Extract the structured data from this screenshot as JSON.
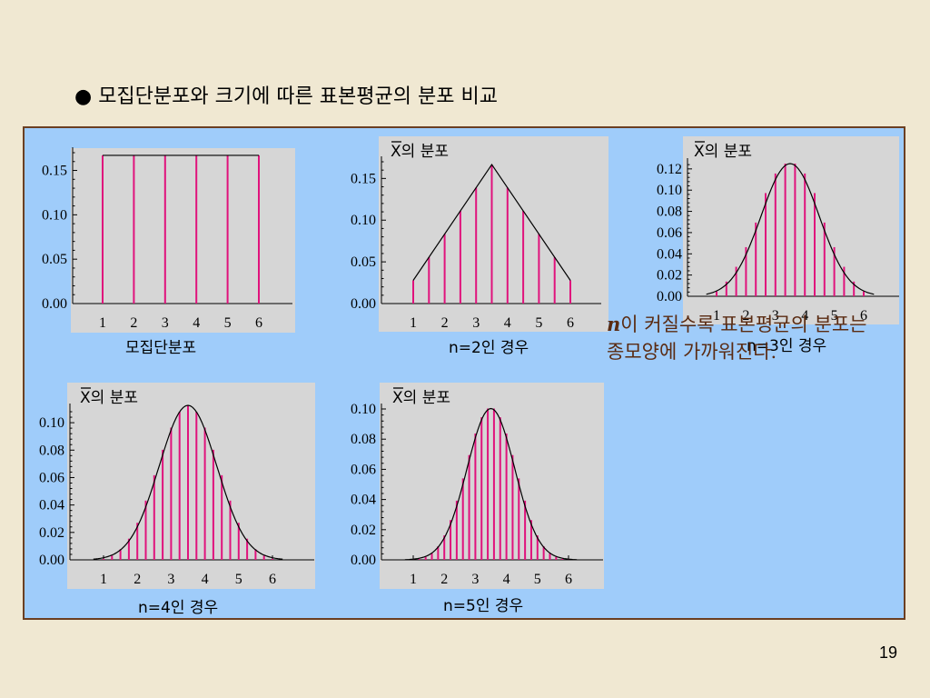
{
  "heading": "● 모집단분포와 크기에 따른 표본평균의 분포 비교",
  "note": {
    "symbol": "n",
    "text": "이 커질수록 표본평균의 분포는 종모양에 가까워진다."
  },
  "page_number": "19",
  "colors": {
    "bars": "#e0127c",
    "panel_bg": "#d6d6d6",
    "frame_bg": "#9fccfa",
    "curve": "#000000"
  },
  "chart_data": [
    {
      "type": "bar",
      "caption": "모집단분포",
      "title": "",
      "x": [
        1,
        2,
        3,
        4,
        5,
        6
      ],
      "xticks": [
        "1",
        "2",
        "3",
        "4",
        "5",
        "6"
      ],
      "yticks": [
        "0.00",
        "0.05",
        "0.10",
        "0.15"
      ],
      "ylim": [
        0,
        0.17
      ],
      "curve": "flat",
      "bars_per_unit": 1,
      "values": [
        0.167,
        0.167,
        0.167,
        0.167,
        0.167,
        0.167
      ]
    },
    {
      "type": "bar",
      "caption": "n=2인 경우",
      "title": "X의 분포",
      "x_bar": "X",
      "xticks": [
        "1",
        "2",
        "3",
        "4",
        "5",
        "6"
      ],
      "yticks": [
        "0.00",
        "0.05",
        "0.10",
        "0.15"
      ],
      "ylim": [
        0,
        0.17
      ],
      "curve": "triangular",
      "n": 2,
      "bars_per_unit": 2
    },
    {
      "type": "bar",
      "caption": "n=3인 경우",
      "title": "X의 분포",
      "x_bar": "X",
      "xticks": [
        "1",
        "2",
        "3",
        "4",
        "5",
        "6"
      ],
      "yticks": [
        "0.00",
        "0.02",
        "0.04",
        "0.06",
        "0.08",
        "0.10",
        "0.12"
      ],
      "ylim": [
        0,
        0.125
      ],
      "curve": "bell",
      "n": 3,
      "bars_per_unit": 3
    },
    {
      "type": "bar",
      "caption": "n=4인 경우",
      "title": "X의 분포",
      "x_bar": "X",
      "xticks": [
        "1",
        "2",
        "3",
        "4",
        "5",
        "6"
      ],
      "yticks": [
        "0.00",
        "0.02",
        "0.04",
        "0.06",
        "0.08",
        "0.10"
      ],
      "ylim": [
        0,
        0.11
      ],
      "curve": "bell",
      "n": 4,
      "bars_per_unit": 4
    },
    {
      "type": "bar",
      "caption": "n=5인 경우",
      "title": "X의 분포",
      "x_bar": "X",
      "xticks": [
        "1",
        "2",
        "3",
        "4",
        "5",
        "6"
      ],
      "yticks": [
        "0.00",
        "0.02",
        "0.04",
        "0.06",
        "0.08",
        "0.10"
      ],
      "ylim": [
        0,
        0.1
      ],
      "curve": "bell",
      "n": 5,
      "bars_per_unit": 5
    }
  ]
}
